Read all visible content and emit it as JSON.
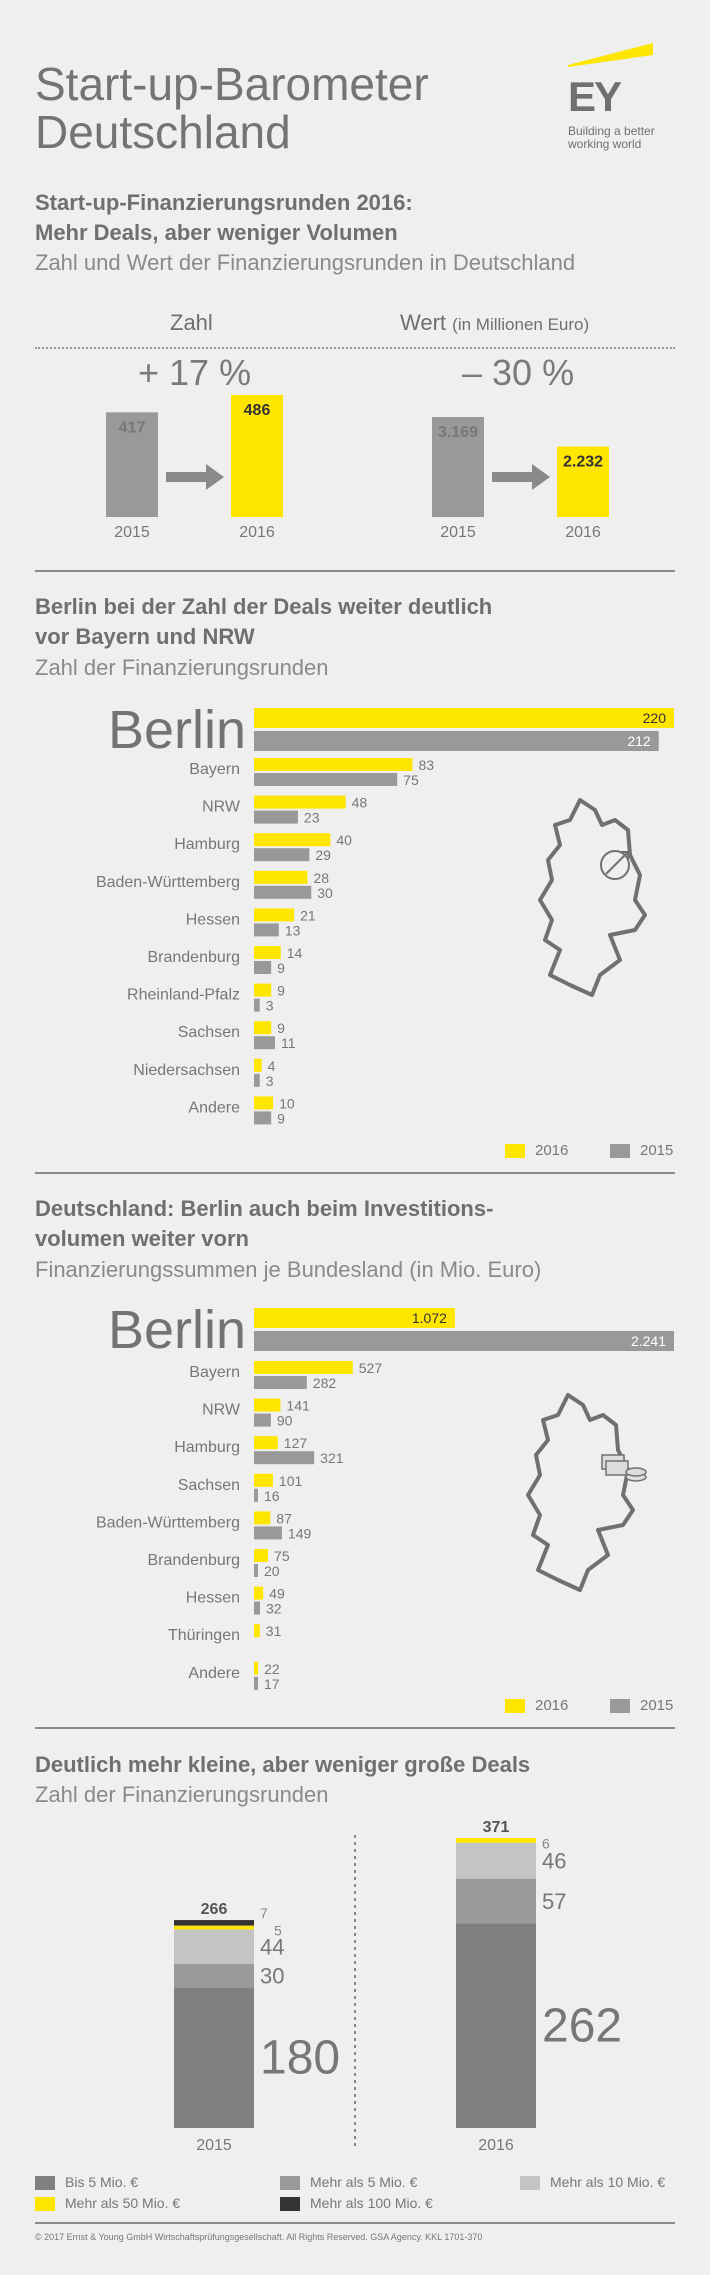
{
  "header": {
    "title_line1": "Start-up-Barometer",
    "title_line2": "Deutschland",
    "logo_text": "EY",
    "logo_tagline_1": "Building a better",
    "logo_tagline_2": "working world",
    "brand_yellow": "#ffe600",
    "gray": "#999999"
  },
  "section1": {
    "heading_1": "Start-up-Finanzierungsrunden 2016:",
    "heading_2": "Mehr Deals, aber weniger Volumen",
    "subtitle": "Zahl und Wert der Finanzierungsrunden in Deutschland",
    "col_zahl": "Zahl",
    "col_wert": "Wert",
    "col_wert_unit": "(in Millionen Euro)",
    "change_zahl": "+ 17 %",
    "change_wert": "– 30 %"
  },
  "section2": {
    "heading_1": "Berlin bei der Zahl der Deals weiter deutlich",
    "heading_2": "vor Bayern und NRW",
    "subtitle": "Zahl der Finanzierungsrunden",
    "legend_2016": "2016",
    "legend_2015": "2015"
  },
  "section3": {
    "heading_1": "Deutschland: Berlin auch beim Investitions-",
    "heading_2": "volumen weiter vorn",
    "subtitle": "Finanzierungssummen je Bundesland",
    "subtitle_unit": "(in Mio. Euro)",
    "legend_2016": "2016",
    "legend_2015": "2015"
  },
  "section4": {
    "heading": "Deutlich mehr kleine, aber weniger große Deals",
    "subtitle": "Zahl der Finanzierungsrunden",
    "legend": [
      {
        "label": "Bis 5 Mio. €",
        "color": "#808080"
      },
      {
        "label": "Mehr als 5 Mio. €",
        "color": "#9a9a9a"
      },
      {
        "label": "Mehr als 10 Mio. €",
        "color": "#c4c4c4"
      },
      {
        "label": "Mehr als 50 Mio. €",
        "color": "#ffe600"
      },
      {
        "label": "Mehr als 100 Mio. €",
        "color": "#333333"
      }
    ]
  },
  "footer": {
    "copyright": "© 2017 Ernst & Young GmbH Wirtschaftsprüfungsgesellschaft. All Rights Reserved. GSA Agency. KKL 1701-370"
  },
  "chart_data": [
    {
      "type": "bar",
      "title": "Zahl",
      "categories": [
        "2015",
        "2016"
      ],
      "values": [
        417,
        486
      ],
      "value_labels": [
        "417",
        "486"
      ],
      "change": "+ 17 %"
    },
    {
      "type": "bar",
      "title": "Wert (in Millionen Euro)",
      "categories": [
        "2015",
        "2016"
      ],
      "values": [
        3169,
        2232
      ],
      "value_labels": [
        "3.169",
        "2.232"
      ],
      "change": "– 30 %"
    },
    {
      "type": "bar",
      "orientation": "horizontal",
      "title": "Zahl der Finanzierungsrunden",
      "categories": [
        "Berlin",
        "Bayern",
        "NRW",
        "Hamburg",
        "Baden-Württemberg",
        "Hessen",
        "Brandenburg",
        "Rheinland-Pfalz",
        "Sachsen",
        "Niedersachsen",
        "Andere"
      ],
      "series": [
        {
          "name": "2016",
          "color": "#ffe600",
          "values": [
            220,
            83,
            48,
            40,
            28,
            21,
            14,
            9,
            9,
            4,
            10
          ],
          "labels": [
            "220",
            "83",
            "48",
            "40",
            "28",
            "21",
            "14",
            "9",
            "9",
            "4",
            "10"
          ]
        },
        {
          "name": "2015",
          "color": "#999999",
          "values": [
            212,
            75,
            23,
            29,
            30,
            13,
            9,
            3,
            11,
            3,
            9
          ],
          "labels": [
            "212",
            "75",
            "23",
            "29",
            "30",
            "13",
            "9",
            "3",
            "11",
            "3",
            "9"
          ]
        }
      ],
      "xlim": [
        0,
        220
      ]
    },
    {
      "type": "bar",
      "orientation": "horizontal",
      "title": "Finanzierungssummen je Bundesland (in Mio. Euro)",
      "categories": [
        "Berlin",
        "Bayern",
        "NRW",
        "Hamburg",
        "Sachsen",
        "Baden-Württemberg",
        "Brandenburg",
        "Hessen",
        "Thüringen",
        "Andere"
      ],
      "series": [
        {
          "name": "2016",
          "color": "#ffe600",
          "values": [
            1072,
            527,
            141,
            127,
            101,
            87,
            75,
            49,
            31,
            22
          ],
          "labels": [
            "1.072",
            "527",
            "141",
            "127",
            "101",
            "87",
            "75",
            "49",
            "31",
            "22"
          ]
        },
        {
          "name": "2015",
          "color": "#999999",
          "values": [
            2241,
            282,
            90,
            321,
            16,
            149,
            20,
            32,
            null,
            17
          ],
          "labels": [
            "2.241",
            "282",
            "90",
            "321",
            "16",
            "149",
            "20",
            "32",
            "",
            "17"
          ]
        }
      ],
      "xlim": [
        0,
        2241
      ]
    },
    {
      "type": "bar",
      "stacked": true,
      "title": "Zahl der Finanzierungsrunden",
      "categories": [
        "2015",
        "2016"
      ],
      "totals": [
        266,
        371
      ],
      "total_labels": [
        "266",
        "371"
      ],
      "series": [
        {
          "name": "Bis 5 Mio. €",
          "color": "#808080",
          "values": [
            180,
            262
          ],
          "labels": [
            "180",
            "262"
          ]
        },
        {
          "name": "Mehr als 5 Mio. €",
          "color": "#9a9a9a",
          "values": [
            30,
            57
          ],
          "labels": [
            "30",
            "57"
          ]
        },
        {
          "name": "Mehr als 10 Mio. €",
          "color": "#c4c4c4",
          "values": [
            44,
            46
          ],
          "labels": [
            "44",
            "46"
          ]
        },
        {
          "name": "Mehr als 50 Mio. €",
          "color": "#ffe600",
          "values": [
            5,
            6
          ],
          "labels": [
            "5",
            "6"
          ]
        },
        {
          "name": "Mehr als 100 Mio. €",
          "color": "#333333",
          "values": [
            7,
            0
          ],
          "labels": [
            "7",
            ""
          ]
        }
      ]
    }
  ]
}
